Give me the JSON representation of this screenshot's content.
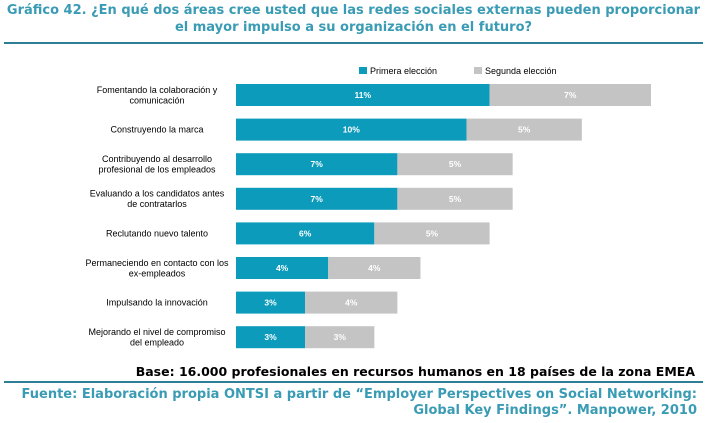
{
  "title": "Gráfico 42. ¿En qué dos áreas cree usted que las redes sociales externas pueden proporcionar el mayor impulso a su organización en el futuro?",
  "base_note": "Base: 16.000 profesionales en recursos humanos en 18 países de la zona EMEA",
  "source_line1": "Fuente: Elaboración propia ONTSI a partir de “Employer Perspectives on Social Networking:",
  "source_line2": "Global Key Findings”. Manpower, 2010",
  "colors": {
    "primera": "#0c9bbb",
    "segunda": "#c4c4c4",
    "accent": "#3a9bb4",
    "rule": "#2e7f95"
  },
  "chart_data": {
    "type": "bar",
    "orientation": "horizontal",
    "stacked": true,
    "legend_position": "top-right",
    "categories": [
      [
        "Fomentando la colaboración y",
        "comunicación"
      ],
      [
        "Construyendo la marca"
      ],
      [
        "Contribuyendo al desarrollo",
        "profesional de los empleados"
      ],
      [
        "Evaluando a los candidatos antes",
        "de contratarlos"
      ],
      [
        "Reclutando nuevo talento"
      ],
      [
        "Permaneciendo en contacto con los",
        "ex-empleados"
      ],
      [
        "Impulsando la innovación"
      ],
      [
        "Mejorando el nivel de compromiso",
        "del empleado"
      ]
    ],
    "series": [
      {
        "name": "Primera elección",
        "values": [
          11,
          10,
          7,
          7,
          6,
          4,
          3,
          3
        ],
        "labels": [
          "11%",
          "10%",
          "7%",
          "7%",
          "6%",
          "4%",
          "3%",
          "3%"
        ]
      },
      {
        "name": "Segunda elección",
        "values": [
          7,
          5,
          5,
          5,
          5,
          4,
          4,
          3
        ],
        "labels": [
          "7%",
          "5%",
          "5%",
          "5%",
          "5%",
          "4%",
          "4%",
          "3%"
        ]
      }
    ],
    "xlim": [
      0,
      18
    ]
  }
}
